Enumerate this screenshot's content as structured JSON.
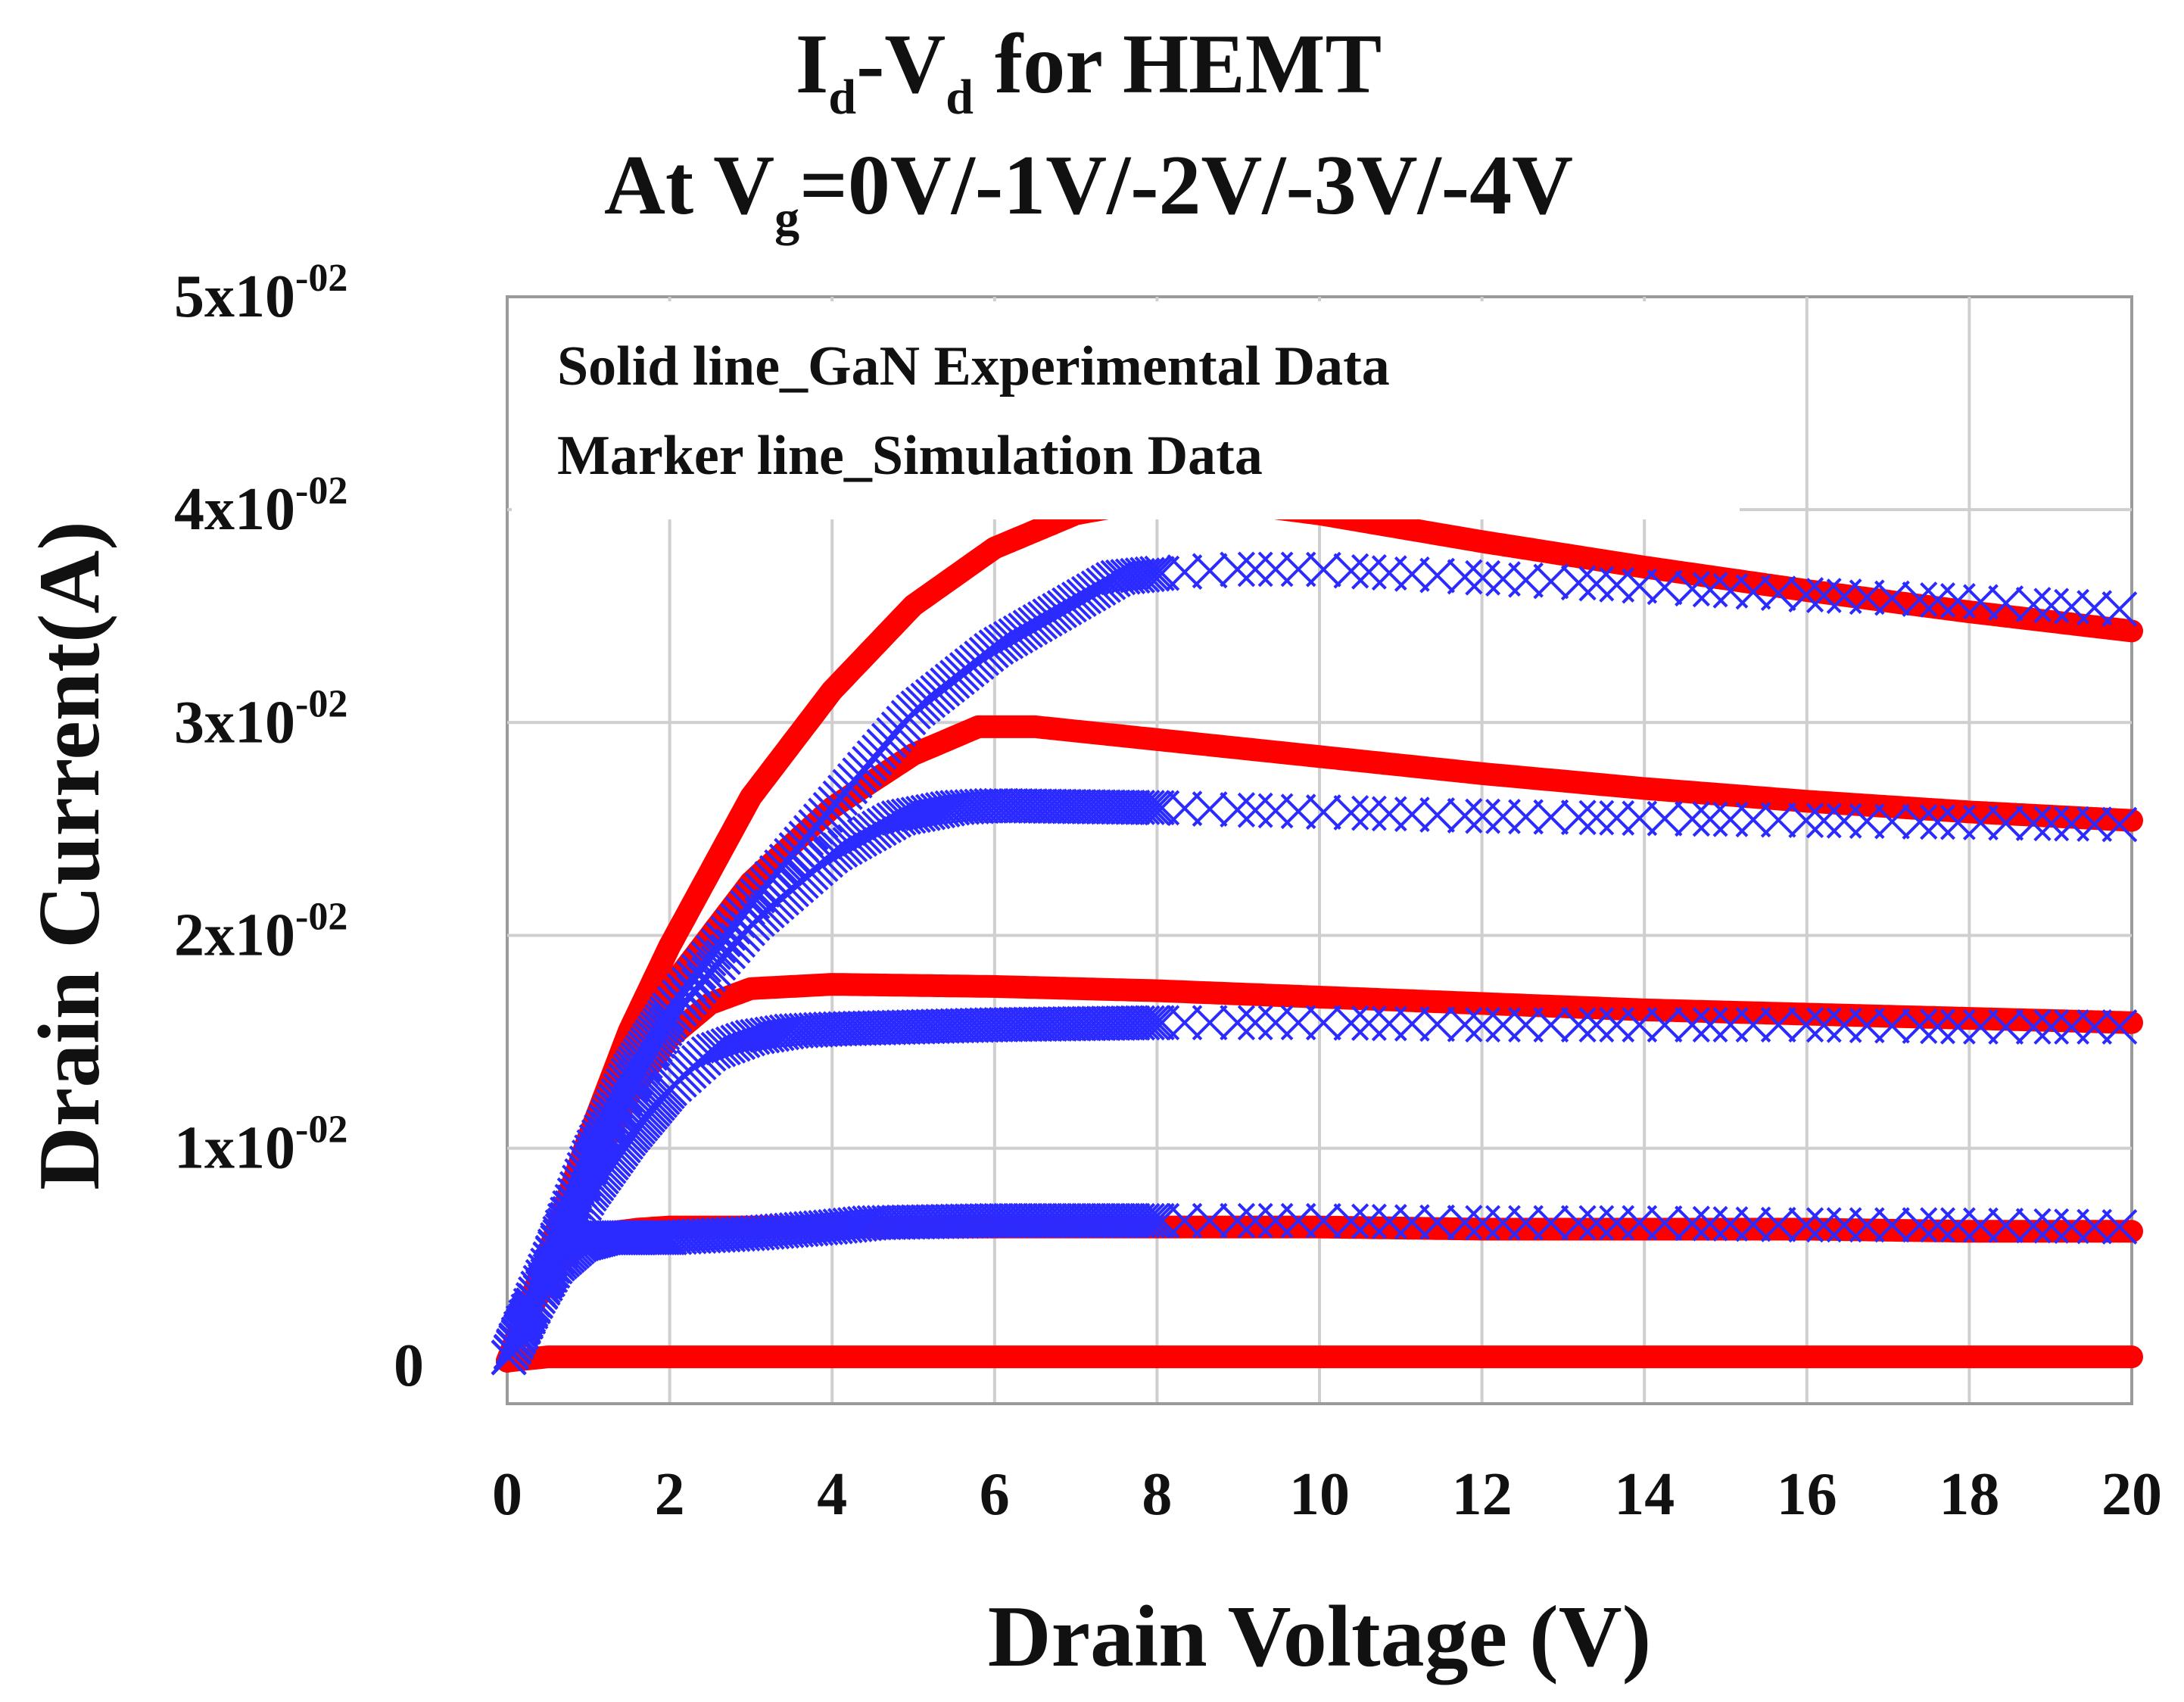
{
  "chart_data": {
    "type": "line",
    "title_line1": {
      "I": "I",
      "d": "d",
      "dash": "-V",
      "d2": "d",
      "rest": " for HEMT"
    },
    "title_line2": {
      "prefix": "At V",
      "sub": "g",
      "rest": "=0V/-1V/-2V/-3V/-4V"
    },
    "xlabel": "Drain Voltage (V)",
    "ylabel": "Drain Current(A)",
    "xlim": [
      0,
      20
    ],
    "ylim": [
      -0.002,
      0.05
    ],
    "x_ticks": [
      "0",
      "2",
      "4",
      "6",
      "8",
      "10",
      "12",
      "14",
      "16",
      "18",
      "20"
    ],
    "x_tick_values": [
      0,
      2,
      4,
      6,
      8,
      10,
      12,
      14,
      16,
      18,
      20
    ],
    "y_ticks": [
      {
        "value": 0.05,
        "mantissa": "5x10",
        "exp": "-02"
      },
      {
        "value": 0.04,
        "mantissa": "4x10",
        "exp": "-02"
      },
      {
        "value": 0.03,
        "mantissa": "3x10",
        "exp": "-02"
      },
      {
        "value": 0.02,
        "mantissa": "2x10",
        "exp": "-02"
      },
      {
        "value": 0.01,
        "mantissa": "1x10",
        "exp": "-02"
      },
      {
        "value": 0.0,
        "mantissa": "0",
        "exp": ""
      }
    ],
    "grid": true,
    "legend": {
      "position": "top-left",
      "line1": "Solid line_GaN Experimental  Data",
      "line2": "Marker line_Simulation  Data"
    },
    "series_colors": {
      "experimental": "#ff0000",
      "simulation": "#2b2bff"
    },
    "series": [
      {
        "name": "Experimental Vg=0V",
        "kind": "solid",
        "x": [
          0,
          0.5,
          1,
          1.5,
          2,
          3,
          4,
          5,
          6,
          7,
          8,
          8.5,
          9,
          10,
          12,
          14,
          16,
          18,
          20
        ],
        "y": [
          0,
          0.005,
          0.0105,
          0.0155,
          0.0195,
          0.0265,
          0.0315,
          0.0355,
          0.0382,
          0.0398,
          0.0405,
          0.0405,
          0.0403,
          0.0398,
          0.0385,
          0.0373,
          0.0362,
          0.0352,
          0.0343
        ]
      },
      {
        "name": "Experimental Vg=-1V",
        "kind": "solid",
        "x": [
          0,
          0.5,
          1,
          1.5,
          2,
          3,
          4,
          5,
          5.8,
          6.5,
          8,
          10,
          12,
          14,
          16,
          18,
          20
        ],
        "y": [
          0,
          0.0048,
          0.0095,
          0.014,
          0.0175,
          0.0225,
          0.026,
          0.0285,
          0.0298,
          0.0298,
          0.0292,
          0.0284,
          0.0276,
          0.0269,
          0.0263,
          0.0258,
          0.0254
        ]
      },
      {
        "name": "Experimental Vg=-2V",
        "kind": "solid",
        "x": [
          0,
          0.5,
          1,
          1.5,
          2,
          2.5,
          3,
          4,
          6,
          8,
          10,
          12,
          14,
          16,
          18,
          20
        ],
        "y": [
          0,
          0.0045,
          0.0088,
          0.0125,
          0.0152,
          0.0168,
          0.0175,
          0.0177,
          0.0176,
          0.0174,
          0.0171,
          0.0168,
          0.0165,
          0.0163,
          0.0161,
          0.0159
        ]
      },
      {
        "name": "Experimental Vg=-3V",
        "kind": "solid",
        "x": [
          0,
          0.3,
          0.6,
          0.9,
          1.2,
          1.6,
          2,
          4,
          6,
          8,
          10,
          12,
          14,
          16,
          18,
          20
        ],
        "y": [
          0,
          0.0025,
          0.0045,
          0.0055,
          0.006,
          0.0062,
          0.0063,
          0.0063,
          0.0063,
          0.0063,
          0.0063,
          0.0062,
          0.0062,
          0.0062,
          0.0061,
          0.0061
        ]
      },
      {
        "name": "Experimental Vg=-4V",
        "kind": "solid",
        "x": [
          0,
          0.5,
          2,
          6,
          10,
          14,
          20
        ],
        "y": [
          0,
          0.0002,
          0.0002,
          0.0002,
          0.0002,
          0.0002,
          0.0002
        ]
      },
      {
        "name": "Simulation Vg=0V",
        "kind": "marker",
        "x": [
          0,
          0.5,
          1,
          1.5,
          2,
          3,
          4,
          5,
          6,
          7,
          7.5,
          8,
          9,
          10,
          12,
          14,
          16,
          18,
          20
        ],
        "y": [
          0,
          0.0045,
          0.0095,
          0.0135,
          0.0165,
          0.0215,
          0.026,
          0.0305,
          0.0335,
          0.0357,
          0.0368,
          0.037,
          0.0372,
          0.0372,
          0.0368,
          0.0364,
          0.036,
          0.0357,
          0.0353
        ]
      },
      {
        "name": "Simulation Vg=-1V",
        "kind": "marker",
        "x": [
          0,
          0.5,
          1,
          1.5,
          2,
          3,
          4,
          4.8,
          5.5,
          6,
          8,
          10,
          12,
          14,
          16,
          18,
          20
        ],
        "y": [
          0,
          0.0045,
          0.009,
          0.0128,
          0.016,
          0.0205,
          0.0238,
          0.0255,
          0.026,
          0.0261,
          0.026,
          0.0258,
          0.0256,
          0.0255,
          0.0254,
          0.0253,
          0.0252
        ]
      },
      {
        "name": "Simulation Vg=-2V",
        "kind": "marker",
        "x": [
          0,
          0.5,
          1,
          1.5,
          2,
          2.5,
          3,
          3.5,
          4,
          6,
          8,
          10,
          12,
          14,
          16,
          18,
          20
        ],
        "y": [
          0,
          0.004,
          0.0078,
          0.0105,
          0.0128,
          0.0145,
          0.0152,
          0.0155,
          0.0156,
          0.0158,
          0.0159,
          0.0159,
          0.0158,
          0.0158,
          0.0158,
          0.0157,
          0.0157
        ]
      },
      {
        "name": "Simulation Vg=-3V",
        "kind": "marker",
        "x": [
          0,
          0.3,
          0.6,
          0.9,
          1.2,
          2,
          3,
          4,
          4.5,
          6,
          8,
          10,
          12,
          14,
          16,
          18,
          20
        ],
        "y": [
          0,
          0.0025,
          0.0045,
          0.0055,
          0.0058,
          0.0058,
          0.006,
          0.0063,
          0.0065,
          0.0066,
          0.0066,
          0.0066,
          0.0065,
          0.0065,
          0.0064,
          0.0064,
          0.0063
        ]
      }
    ]
  }
}
